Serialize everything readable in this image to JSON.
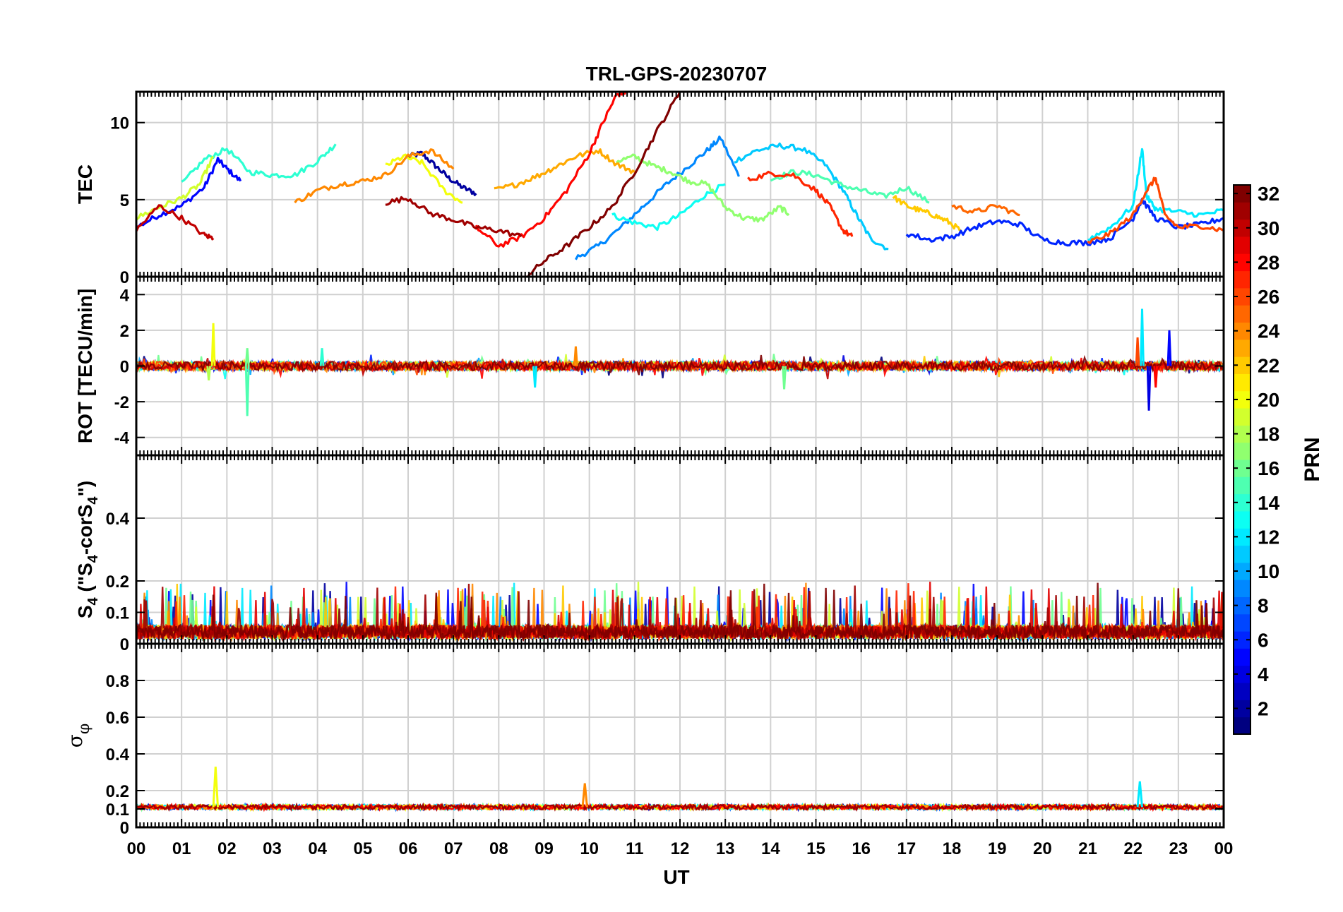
{
  "chart_data": {
    "type": "line",
    "title": "TRL-GPS-20230707",
    "xlabel": "UT",
    "x_ticks": [
      "00",
      "01",
      "02",
      "03",
      "04",
      "05",
      "06",
      "07",
      "08",
      "09",
      "10",
      "11",
      "12",
      "13",
      "14",
      "15",
      "16",
      "17",
      "18",
      "19",
      "20",
      "21",
      "22",
      "23",
      "00"
    ],
    "xlim": [
      0,
      24
    ],
    "colorbar": {
      "label": "PRN",
      "range": [
        1,
        32
      ],
      "ticks": [
        "2",
        "4",
        "6",
        "8",
        "10",
        "12",
        "14",
        "16",
        "18",
        "20",
        "22",
        "24",
        "26",
        "28",
        "30",
        "32"
      ],
      "tick_values": [
        2,
        4,
        6,
        8,
        10,
        12,
        14,
        16,
        18,
        20,
        22,
        24,
        26,
        28,
        30,
        32
      ]
    },
    "panels": [
      {
        "id": "tec",
        "ylabel": "TEC",
        "ylim": [
          0,
          12
        ],
        "yticks": [
          0,
          5,
          10
        ],
        "ytick_labels": [
          "0",
          "5",
          "10"
        ],
        "series": [
          {
            "prn": 2,
            "t": [
              6.0,
              6.3,
              6.6,
              6.9,
              7.2,
              7.5
            ],
            "v": [
              7.8,
              8.0,
              7.2,
              6.4,
              5.8,
              5.4
            ]
          },
          {
            "prn": 5,
            "t": [
              0.0,
              0.5,
              1.0,
              1.5,
              1.8,
              2.0,
              2.3
            ],
            "v": [
              3.2,
              4.0,
              4.6,
              5.8,
              7.6,
              7.0,
              6.2
            ]
          },
          {
            "prn": 9,
            "t": [
              9.7,
              10.2,
              10.7,
              11.2,
              11.7,
              12.2,
              12.6,
              12.9,
              13.3
            ],
            "v": [
              1.2,
              2.0,
              3.2,
              4.6,
              6.0,
              7.2,
              8.2,
              9.0,
              6.5
            ]
          },
          {
            "prn": 11,
            "t": [
              13.2,
              13.7,
              14.2,
              14.7,
              15.2,
              15.6,
              15.9,
              16.2,
              16.6
            ],
            "v": [
              7.5,
              8.2,
              8.5,
              8.3,
              7.3,
              5.6,
              4.0,
              2.5,
              1.8
            ]
          },
          {
            "prn": 13,
            "t": [
              10.5,
              11.0,
              11.5,
              12.0,
              12.5,
              13.0
            ],
            "v": [
              4.0,
              3.5,
              3.2,
              4.0,
              5.2,
              6.0
            ]
          },
          {
            "prn": 14,
            "t": [
              1.0,
              1.5,
              2.0,
              2.5,
              3.0,
              3.5,
              4.0,
              4.4
            ],
            "v": [
              6.0,
              7.6,
              8.3,
              6.8,
              6.6,
              6.6,
              7.5,
              8.6
            ]
          },
          {
            "prn": 15,
            "t": [
              14.0,
              14.5,
              15.0,
              15.5,
              16.0,
              16.5,
              17.0,
              17.5
            ],
            "v": [
              6.3,
              6.8,
              6.6,
              6.0,
              5.6,
              5.2,
              5.8,
              4.8
            ]
          },
          {
            "prn": 17,
            "t": [
              10.6,
              11.0,
              11.4,
              11.8,
              12.2,
              12.6,
              13.0,
              13.4,
              13.8,
              14.2,
              14.4
            ],
            "v": [
              7.5,
              7.8,
              7.2,
              6.8,
              6.2,
              6.0,
              4.5,
              3.8,
              3.7,
              4.5,
              4.1
            ]
          },
          {
            "prn": 19,
            "t": [
              0.0,
              0.5,
              1.0,
              1.4,
              1.7
            ],
            "v": [
              3.8,
              4.5,
              5.1,
              6.0,
              7.8
            ]
          },
          {
            "prn": 20,
            "t": [
              5.5,
              5.9,
              6.3,
              6.8,
              7.2
            ],
            "v": [
              7.2,
              7.8,
              7.4,
              5.6,
              4.8
            ]
          },
          {
            "prn": 22,
            "t": [
              16.7,
              17.0,
              17.3,
              17.6,
              17.9,
              18.2
            ],
            "v": [
              5.2,
              4.6,
              4.3,
              4.0,
              3.6,
              3.0
            ]
          },
          {
            "prn": 23,
            "t": [
              7.9,
              8.4,
              8.9,
              9.3,
              9.7,
              10.2,
              10.6,
              11.0
            ],
            "v": [
              5.6,
              6.0,
              6.6,
              7.2,
              7.8,
              8.2,
              7.3,
              6.8
            ]
          },
          {
            "prn": 24,
            "t": [
              3.5,
              4.0,
              4.5,
              5.0,
              5.5,
              6.0,
              6.5,
              7.0
            ],
            "v": [
              4.8,
              5.6,
              6.0,
              6.2,
              6.6,
              7.8,
              8.2,
              7.0
            ]
          },
          {
            "prn": 25,
            "t": [
              18.0,
              18.5,
              19.0,
              19.5
            ],
            "v": [
              4.6,
              4.2,
              4.6,
              4.0
            ]
          },
          {
            "prn": 27,
            "t": [
              13.5,
              14.0,
              14.5,
              15.0,
              15.3,
              15.6,
              15.8
            ],
            "v": [
              6.3,
              6.7,
              6.6,
              5.6,
              4.6,
              3.0,
              2.6
            ]
          },
          {
            "prn": 28,
            "t": [
              7.5,
              8.0,
              8.5,
              9.0,
              9.5,
              10.0,
              10.3,
              10.6,
              10.8
            ],
            "v": [
              3.2,
              2.0,
              2.6,
              3.8,
              5.6,
              8.0,
              10.0,
              11.8,
              12.0
            ]
          },
          {
            "prn": 30,
            "t": [
              0.0,
              0.5,
              1.0,
              1.5,
              1.7
            ],
            "v": [
              3.0,
              4.6,
              3.8,
              2.7,
              2.5
            ]
          },
          {
            "prn": 31,
            "t": [
              5.5,
              6.0,
              6.5,
              7.0,
              7.5,
              8.0,
              8.5
            ],
            "v": [
              4.8,
              5.1,
              4.1,
              3.7,
              3.2,
              3.0,
              2.6
            ]
          },
          {
            "prn": 32,
            "t": [
              8.6,
              9.0,
              9.5,
              10.0,
              10.5,
              11.0,
              11.5,
              12.0
            ],
            "v": [
              0.0,
              1.0,
              2.0,
              3.2,
              4.5,
              6.8,
              9.5,
              12.0
            ]
          },
          {
            "prn": 6,
            "t": [
              17.0,
              17.5,
              18.0,
              18.5,
              19.0,
              19.5,
              20.0,
              20.5,
              21.0,
              21.5,
              22.0,
              22.2,
              22.5,
              23.0,
              23.5,
              24.0
            ],
            "v": [
              2.8,
              2.4,
              2.6,
              3.2,
              3.6,
              3.4,
              2.4,
              2.2,
              2.2,
              2.5,
              3.8,
              5.0,
              3.8,
              3.2,
              3.4,
              3.8
            ]
          },
          {
            "prn": 12,
            "t": [
              21.0,
              21.5,
              22.0,
              22.2,
              22.3,
              22.5,
              23.0,
              23.5,
              24.0
            ],
            "v": [
              2.4,
              3.2,
              4.6,
              8.3,
              5.2,
              4.4,
              4.2,
              4.0,
              4.3
            ]
          },
          {
            "prn": 26,
            "t": [
              21.0,
              21.5,
              22.0,
              22.3,
              22.5,
              22.7,
              23.0,
              23.5,
              24.0
            ],
            "v": [
              2.2,
              2.8,
              4.0,
              5.6,
              6.4,
              4.0,
              3.2,
              3.3,
              3.0
            ]
          }
        ]
      },
      {
        "id": "rot",
        "ylabel": "ROT [TECU/min]",
        "ylim": [
          -5,
          5
        ],
        "yticks": [
          -4,
          -2,
          0,
          2,
          4
        ],
        "ytick_labels": [
          "-4",
          "-2",
          "0",
          "2",
          "4"
        ],
        "spikes": [
          {
            "t": 1.7,
            "v": 2.4,
            "prn": 20
          },
          {
            "t": 1.6,
            "v": -0.8,
            "prn": 18
          },
          {
            "t": 2.45,
            "v": -2.8,
            "prn": 15
          },
          {
            "t": 2.45,
            "v": 1.0,
            "prn": 16
          },
          {
            "t": 4.1,
            "v": 1.0,
            "prn": 14
          },
          {
            "t": 8.8,
            "v": -1.2,
            "prn": 12
          },
          {
            "t": 9.7,
            "v": 1.1,
            "prn": 24
          },
          {
            "t": 14.3,
            "v": -1.3,
            "prn": 16
          },
          {
            "t": 22.2,
            "v": 3.2,
            "prn": 12
          },
          {
            "t": 22.35,
            "v": -2.5,
            "prn": 4
          },
          {
            "t": 22.1,
            "v": 1.6,
            "prn": 26
          },
          {
            "t": 22.5,
            "v": -1.2,
            "prn": 28
          },
          {
            "t": 22.8,
            "v": 2.0,
            "prn": 5
          }
        ]
      },
      {
        "id": "s4",
        "ylabel": "S4 (\"S4-corS4\")",
        "ylabel_parts": {
          "s": "S",
          "sub": "4",
          "paren_open": " (\"S",
          "sub2": "4",
          "mid": "-corS",
          "sub3": "4",
          "close": "\")"
        },
        "ylim": [
          0,
          0.6
        ],
        "yticks": [
          0,
          0.1,
          0.2,
          0.4
        ],
        "ytick_labels": [
          "0",
          "0.1",
          "0.2",
          "0.4"
        ],
        "noise_base": 0.05,
        "noise_peak": 0.2
      },
      {
        "id": "sigma",
        "ylabel": "σφ",
        "ylabel_parts": {
          "sigma": "σ",
          "sub": "φ"
        },
        "ylim": [
          0,
          1
        ],
        "yticks": [
          0,
          0.1,
          0.2,
          0.4,
          0.6,
          0.8
        ],
        "ytick_labels": [
          "0",
          "0.1",
          "0.2",
          "0.4",
          "0.6",
          "0.8"
        ],
        "noise_base": 0.11,
        "spikes": [
          {
            "t": 1.75,
            "v": 0.33,
            "prn": 20
          },
          {
            "t": 9.9,
            "v": 0.24,
            "prn": 24
          },
          {
            "t": 22.15,
            "v": 0.25,
            "prn": 12
          }
        ]
      }
    ]
  }
}
